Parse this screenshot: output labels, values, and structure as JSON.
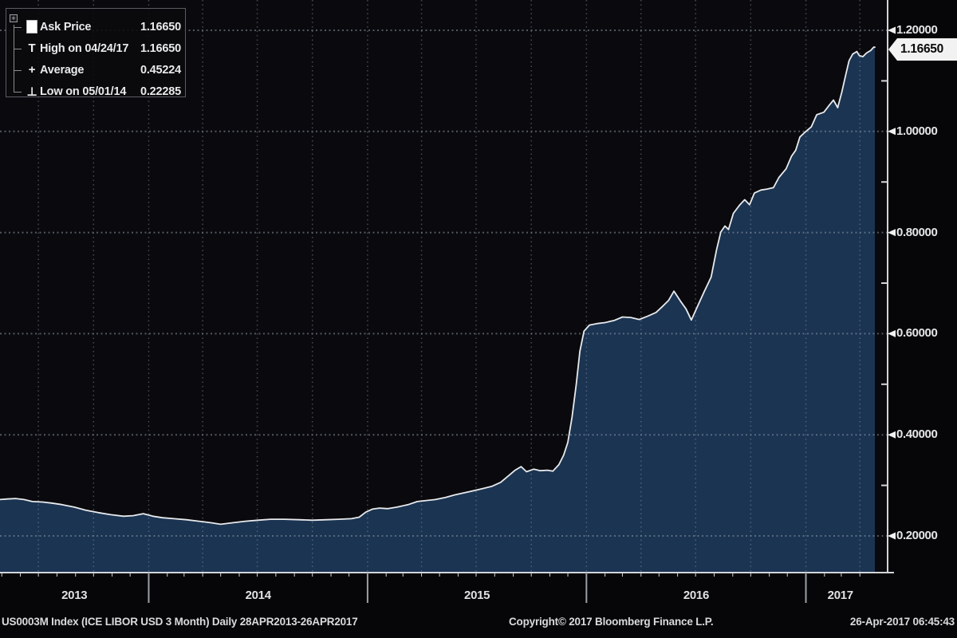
{
  "legend": {
    "collapse_glyph": "+",
    "rows": [
      {
        "marker": "series-swatch",
        "glyph": "",
        "label": "Ask Price",
        "value": "1.16650"
      },
      {
        "marker": "high-tee",
        "glyph": "T",
        "label": "High on 04/24/17",
        "value": "1.16650"
      },
      {
        "marker": "average-cross",
        "glyph": "+",
        "label": "Average",
        "value": "0.45224"
      },
      {
        "marker": "low-tee",
        "glyph": "⊥",
        "label": "Low on 05/01/14",
        "value": "0.22285"
      }
    ]
  },
  "y_axis": {
    "last_price_label": "1.16650",
    "ticks": [
      {
        "label": "1.20000",
        "value": 1.2
      },
      {
        "label": "1.00000",
        "value": 1.0
      },
      {
        "label": "0.80000",
        "value": 0.8
      },
      {
        "label": "0.60000",
        "value": 0.6
      },
      {
        "label": "0.40000",
        "value": 0.4
      },
      {
        "label": "0.20000",
        "value": 0.2
      }
    ],
    "minor_tick_values": [
      1.1,
      0.9,
      0.7,
      0.5,
      0.3
    ]
  },
  "x_axis": {
    "years": [
      "2013",
      "2014",
      "2015",
      "2016",
      "2017"
    ]
  },
  "footer": {
    "left": "US0003M Index (ICE LIBOR USD 3 Month)  Daily 28APR2013-26APR2017",
    "copyright": "Copyright© 2017 Bloomberg Finance L.P.",
    "timestamp": "26-Apr-2017 06:45:43"
  },
  "colors": {
    "background": "#060608",
    "plot_background": "#0a0a0e",
    "area_fill": "#1b3452",
    "line": "#e8eaec",
    "grid": "#8c98a5",
    "axis": "#d2d5d8",
    "tag_background": "#f2f2f2",
    "tag_text": "#0a0a0a"
  },
  "chart_data": {
    "type": "area",
    "title": "US0003M Index (ICE LIBOR USD 3 Month)",
    "period": "Daily 28APR2013-26APR2017",
    "x_range": [
      "2013-04-28",
      "2017-04-26"
    ],
    "ylabel": "",
    "y_tick_values": [
      0.2,
      0.4,
      0.6,
      0.8,
      1.0,
      1.2
    ],
    "grid": "dotted",
    "legend_position": "top-left",
    "last_price": 1.1665,
    "high": {
      "date": "2017-04-24",
      "value": 1.1665
    },
    "average": 0.45224,
    "low": {
      "date": "2014-05-01",
      "value": 0.22285
    },
    "series": [
      {
        "name": "Ask Price",
        "data": [
          [
            "2013-04-28",
            0.272
          ],
          [
            "2013-05-10",
            0.273
          ],
          [
            "2013-05-24",
            0.274
          ],
          [
            "2013-06-07",
            0.272
          ],
          [
            "2013-06-21",
            0.268
          ],
          [
            "2013-07-08",
            0.267
          ],
          [
            "2013-07-23",
            0.265
          ],
          [
            "2013-08-09",
            0.262
          ],
          [
            "2013-08-30",
            0.257
          ],
          [
            "2013-09-18",
            0.251
          ],
          [
            "2013-10-09",
            0.246
          ],
          [
            "2013-10-30",
            0.242
          ],
          [
            "2013-11-20",
            0.239
          ],
          [
            "2013-12-06",
            0.24
          ],
          [
            "2013-12-23",
            0.244
          ],
          [
            "2014-01-08",
            0.239
          ],
          [
            "2014-01-24",
            0.236
          ],
          [
            "2014-02-12",
            0.234
          ],
          [
            "2014-03-05",
            0.232
          ],
          [
            "2014-03-26",
            0.229
          ],
          [
            "2014-04-15",
            0.226
          ],
          [
            "2014-05-01",
            0.223
          ],
          [
            "2014-05-21",
            0.226
          ],
          [
            "2014-06-11",
            0.229
          ],
          [
            "2014-07-02",
            0.231
          ],
          [
            "2014-07-23",
            0.233
          ],
          [
            "2014-08-15",
            0.233
          ],
          [
            "2014-09-09",
            0.232
          ],
          [
            "2014-10-01",
            0.231
          ],
          [
            "2014-10-24",
            0.232
          ],
          [
            "2014-11-14",
            0.233
          ],
          [
            "2014-12-05",
            0.234
          ],
          [
            "2014-12-18",
            0.237
          ],
          [
            "2014-12-29",
            0.247
          ],
          [
            "2015-01-09",
            0.253
          ],
          [
            "2015-01-21",
            0.255
          ],
          [
            "2015-02-04",
            0.254
          ],
          [
            "2015-02-19",
            0.257
          ],
          [
            "2015-03-10",
            0.262
          ],
          [
            "2015-03-25",
            0.268
          ],
          [
            "2015-04-09",
            0.27
          ],
          [
            "2015-04-24",
            0.272
          ],
          [
            "2015-05-11",
            0.276
          ],
          [
            "2015-05-26",
            0.281
          ],
          [
            "2015-06-10",
            0.285
          ],
          [
            "2015-06-25",
            0.289
          ],
          [
            "2015-07-10",
            0.293
          ],
          [
            "2015-07-27",
            0.298
          ],
          [
            "2015-08-11",
            0.306
          ],
          [
            "2015-08-25",
            0.32
          ],
          [
            "2015-09-04",
            0.33
          ],
          [
            "2015-09-14",
            0.337
          ],
          [
            "2015-09-23",
            0.327
          ],
          [
            "2015-10-05",
            0.332
          ],
          [
            "2015-10-16",
            0.329
          ],
          [
            "2015-10-28",
            0.33
          ],
          [
            "2015-11-06",
            0.328
          ],
          [
            "2015-11-16",
            0.341
          ],
          [
            "2015-11-24",
            0.36
          ],
          [
            "2015-12-01",
            0.385
          ],
          [
            "2015-12-08",
            0.435
          ],
          [
            "2015-12-15",
            0.5
          ],
          [
            "2015-12-21",
            0.565
          ],
          [
            "2015-12-28",
            0.605
          ],
          [
            "2016-01-06",
            0.617
          ],
          [
            "2016-01-19",
            0.62
          ],
          [
            "2016-02-01",
            0.622
          ],
          [
            "2016-02-16",
            0.626
          ],
          [
            "2016-03-01",
            0.633
          ],
          [
            "2016-03-15",
            0.632
          ],
          [
            "2016-03-29",
            0.628
          ],
          [
            "2016-04-13",
            0.635
          ],
          [
            "2016-04-26",
            0.642
          ],
          [
            "2016-05-06",
            0.653
          ],
          [
            "2016-05-17",
            0.666
          ],
          [
            "2016-05-26",
            0.684
          ],
          [
            "2016-06-06",
            0.664
          ],
          [
            "2016-06-15",
            0.649
          ],
          [
            "2016-06-24",
            0.627
          ],
          [
            "2016-07-05",
            0.656
          ],
          [
            "2016-07-15",
            0.682
          ],
          [
            "2016-07-27",
            0.712
          ],
          [
            "2016-08-05",
            0.766
          ],
          [
            "2016-08-12",
            0.801
          ],
          [
            "2016-08-19",
            0.813
          ],
          [
            "2016-08-25",
            0.806
          ],
          [
            "2016-09-02",
            0.838
          ],
          [
            "2016-09-13",
            0.855
          ],
          [
            "2016-09-21",
            0.865
          ],
          [
            "2016-09-29",
            0.855
          ],
          [
            "2016-10-07",
            0.878
          ],
          [
            "2016-10-18",
            0.884
          ],
          [
            "2016-10-28",
            0.886
          ],
          [
            "2016-11-08",
            0.889
          ],
          [
            "2016-11-17",
            0.909
          ],
          [
            "2016-11-29",
            0.926
          ],
          [
            "2016-12-08",
            0.951
          ],
          [
            "2016-12-15",
            0.963
          ],
          [
            "2016-12-22",
            0.989
          ],
          [
            "2016-12-30",
            0.998
          ],
          [
            "2017-01-10",
            1.009
          ],
          [
            "2017-01-19",
            1.033
          ],
          [
            "2017-01-31",
            1.038
          ],
          [
            "2017-02-09",
            1.052
          ],
          [
            "2017-02-16",
            1.062
          ],
          [
            "2017-02-23",
            1.047
          ],
          [
            "2017-03-02",
            1.078
          ],
          [
            "2017-03-08",
            1.11
          ],
          [
            "2017-03-14",
            1.14
          ],
          [
            "2017-03-20",
            1.153
          ],
          [
            "2017-03-27",
            1.158
          ],
          [
            "2017-03-31",
            1.15
          ],
          [
            "2017-04-06",
            1.148
          ],
          [
            "2017-04-12",
            1.155
          ],
          [
            "2017-04-19",
            1.16
          ],
          [
            "2017-04-24",
            1.1665
          ],
          [
            "2017-04-26",
            1.1665
          ]
        ]
      }
    ]
  }
}
